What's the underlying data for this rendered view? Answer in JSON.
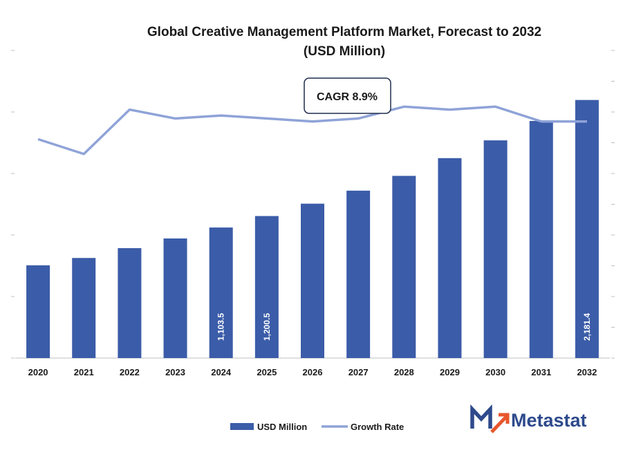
{
  "colors": {
    "bar": "#3b5ca8",
    "line": "#8fa3d8",
    "brand": "#2e4a8c",
    "axis": "#bfbfbf"
  },
  "chart_data": {
    "type": "bar",
    "title": "Global Creative Management Platform Market, Forecast to 2032",
    "subtitle": "(USD Million)",
    "categories": [
      "2020",
      "2021",
      "2022",
      "2023",
      "2024",
      "2025",
      "2026",
      "2027",
      "2028",
      "2029",
      "2030",
      "2031",
      "2032"
    ],
    "series": [
      {
        "name": "USD Million",
        "type": "bar",
        "axis": "left",
        "values": [
          784,
          846,
          929,
          1011,
          1103.5,
          1200.5,
          1305,
          1415,
          1540,
          1690,
          1840,
          2004,
          2181.4
        ],
        "data_labels": [
          "",
          "",
          "",
          "",
          "1,103.5",
          "1,200.5",
          "",
          "",
          "",
          "",
          "",
          "",
          "2,181.4"
        ]
      },
      {
        "name": "Growth Rate",
        "type": "line",
        "axis": "right",
        "values": [
          7.4,
          6.9,
          8.4,
          8.1,
          8.2,
          8.1,
          8.0,
          8.1,
          8.5,
          8.4,
          8.5,
          8.0,
          8.0
        ]
      }
    ],
    "ylim": [
      0,
      2600
    ],
    "y2lim": [
      0,
      10.4
    ],
    "grid": false,
    "legend_position": "bottom",
    "annotation": "CAGR 8.9%"
  },
  "legend": {
    "bar_label": "USD Million",
    "line_label": "Growth Rate"
  },
  "brand": {
    "name": "Metastat"
  }
}
